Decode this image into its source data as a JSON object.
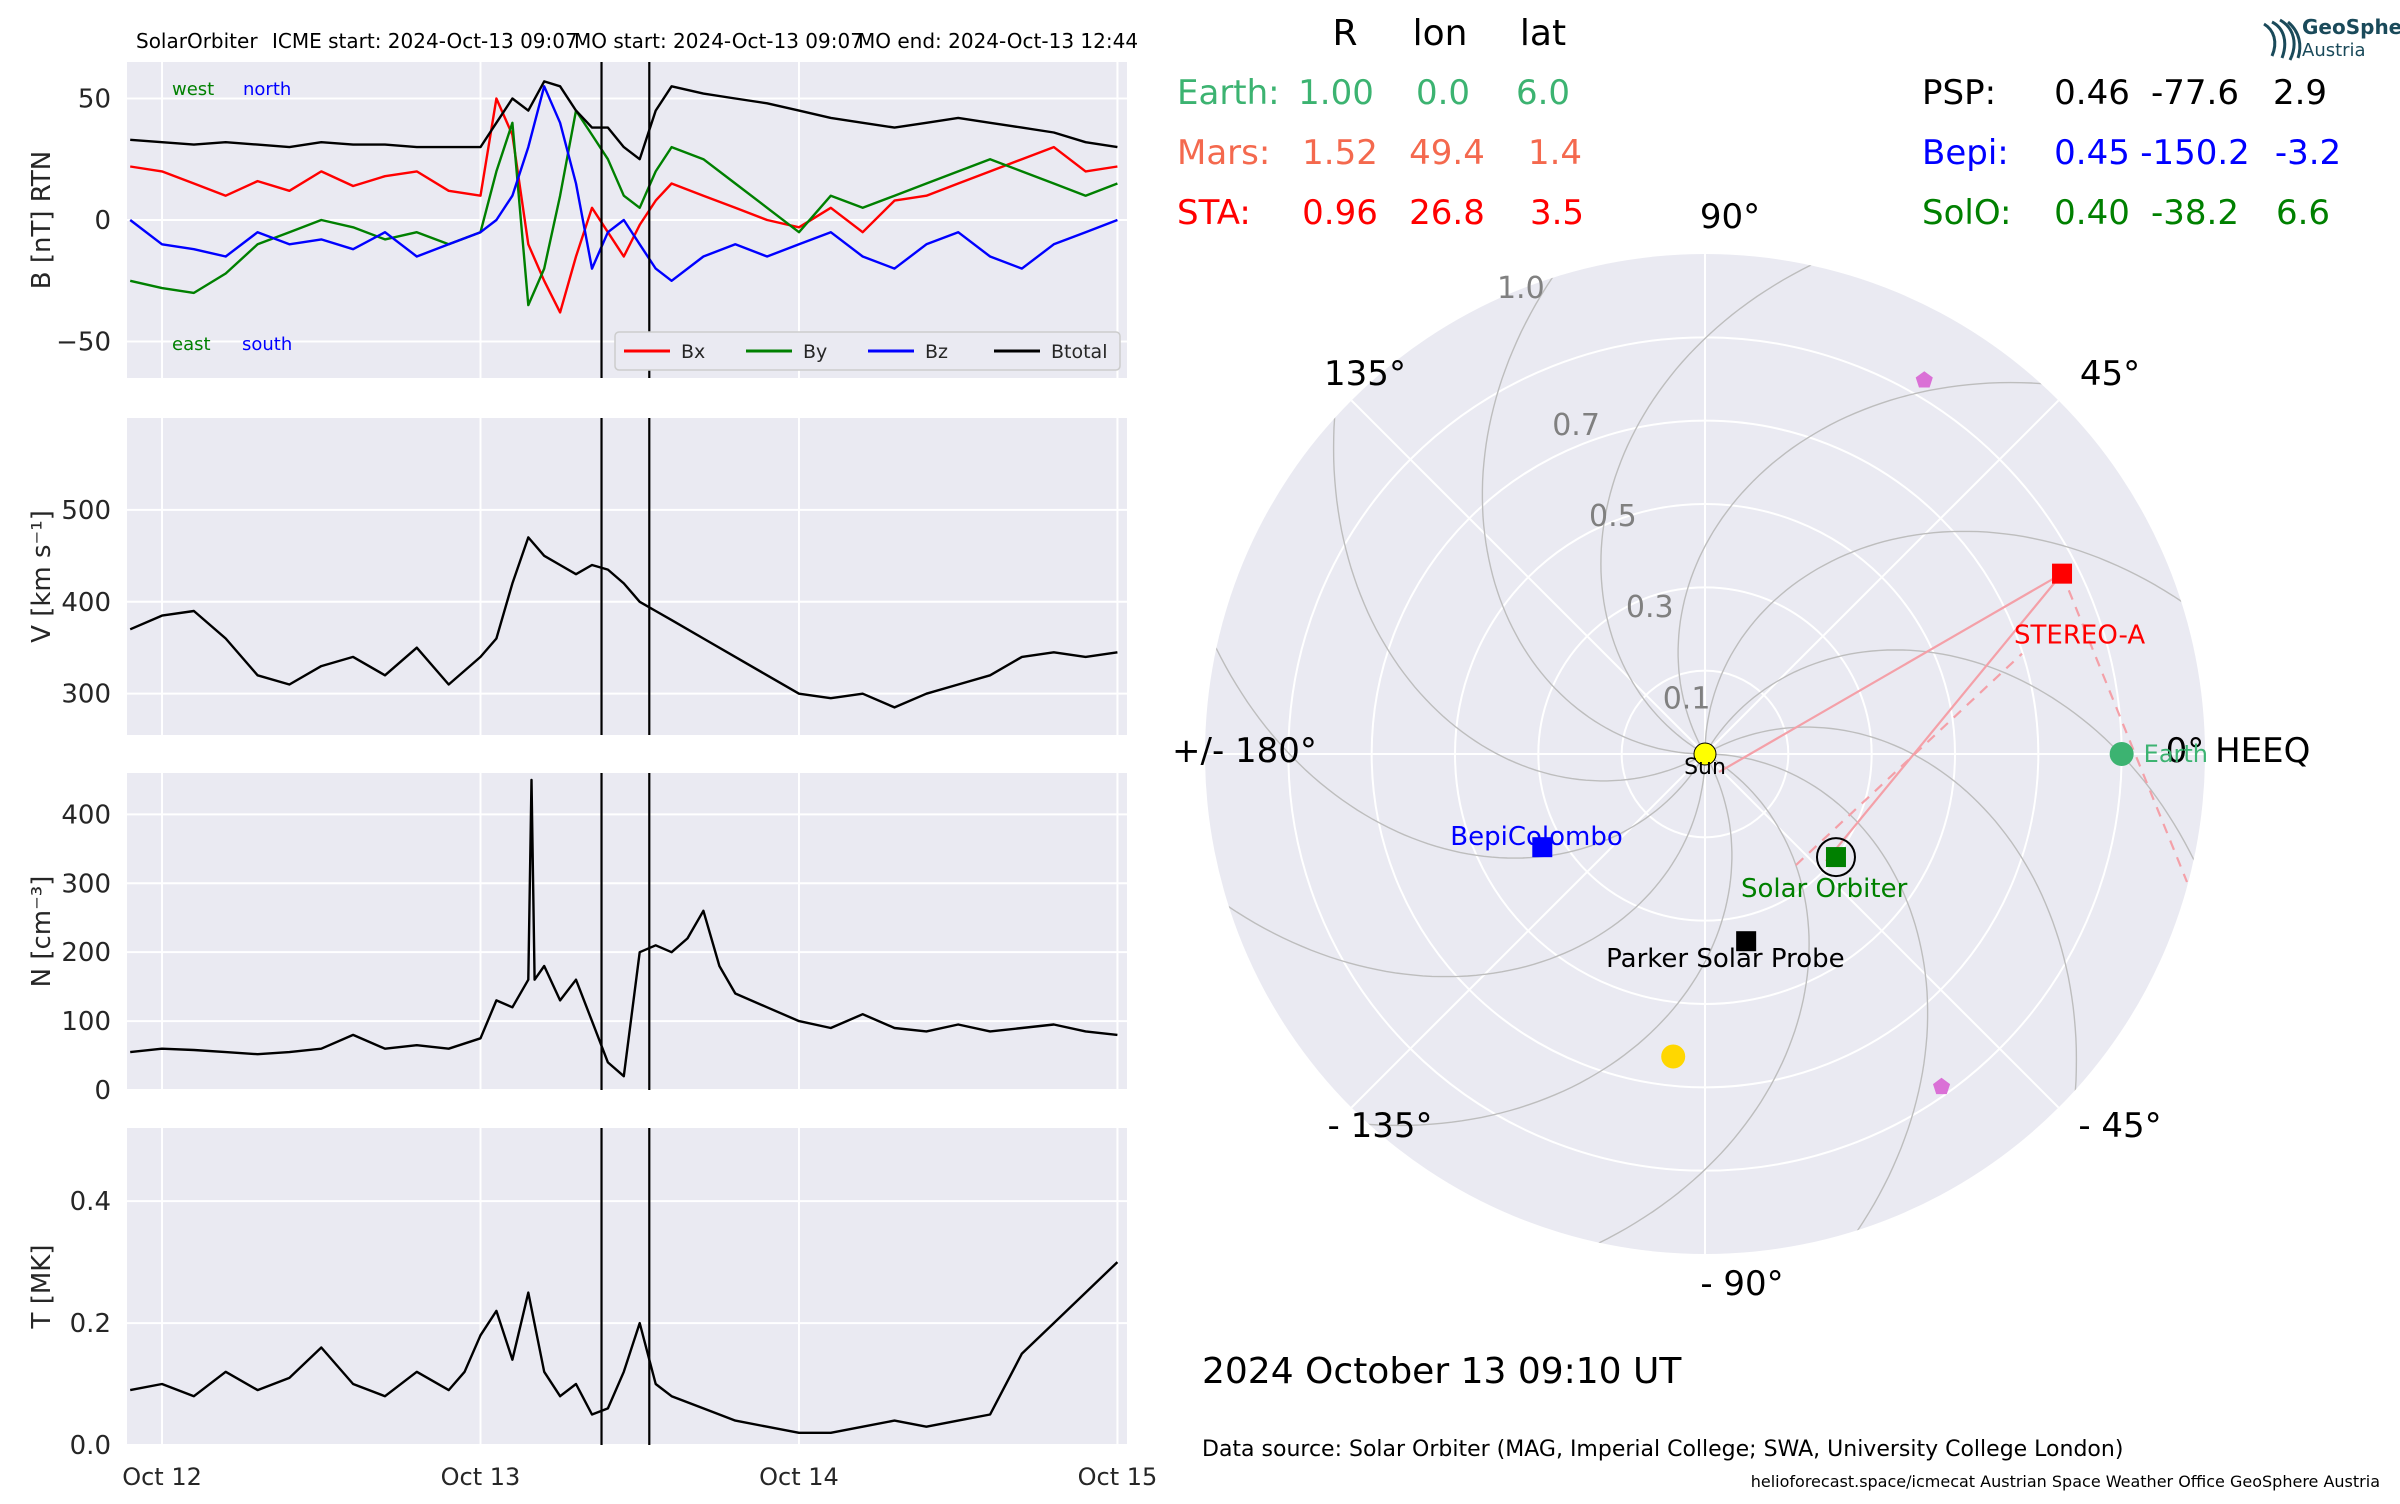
{
  "header": {
    "spacecraft": "SolarOrbiter",
    "icme_start": "ICME start: 2024-Oct-13 09:07",
    "mo_start": "MO start: 2024-Oct-13 09:07",
    "mo_end": "MO end: 2024-Oct-13 12:44"
  },
  "logo": {
    "line1": "GeoSphere",
    "line2": "Austria"
  },
  "positions_table": {
    "headers": [
      "R",
      "lon",
      "lat"
    ],
    "left": [
      {
        "name": "Earth:",
        "r": "1.00",
        "lon": "0.0",
        "lat": "6.0",
        "color": "#3cb371"
      },
      {
        "name": "Mars:",
        "r": "1.52",
        "lon": "49.4",
        "lat": "1.4",
        "color": "#f4694e"
      },
      {
        "name": "STA:",
        "r": "0.96",
        "lon": "26.8",
        "lat": "3.5",
        "color": "#ff0000"
      }
    ],
    "right": [
      {
        "name": "PSP:",
        "r": "0.46",
        "lon": "-77.6",
        "lat": "2.9",
        "color": "#000000"
      },
      {
        "name": "Bepi:",
        "r": "0.45",
        "lon": "-150.2",
        "lat": "-3.2",
        "color": "#0000ff"
      },
      {
        "name": "SolO:",
        "r": "0.40",
        "lon": "-38.2",
        "lat": "6.6",
        "color": "#008000"
      }
    ]
  },
  "date_label": "2024 October 13  09:10 UT",
  "data_source": "Data source: Solar Orbiter (MAG, Imperial College; SWA, University College London)",
  "footer": "helioforecast.space/icmecat   Austrian Space Weather Office   GeoSphere Austria",
  "chart_data": [
    {
      "type": "line",
      "panel": "B",
      "ylabel": "B [nT] RTN",
      "ylim": [
        -65,
        65
      ],
      "yticks": [
        50,
        0,
        -50
      ],
      "ytick_labels": [
        "50",
        "0",
        "−50"
      ],
      "x_unit": "days since 2024-Oct-12 00:00",
      "xlim": [
        -0.11,
        3.03
      ],
      "annotations": {
        "west": "west",
        "north": "north",
        "east": "east",
        "south": "south"
      },
      "annotation_colors": {
        "west": "#008000",
        "north": "#0000ff",
        "east": "#008000",
        "south": "#0000ff"
      },
      "legend": {
        "placement": "lower-right",
        "entries": [
          "Bx",
          "By",
          "Bz",
          "Btotal"
        ]
      },
      "series": [
        {
          "name": "Bx",
          "color": "#ff0000",
          "x": [
            -0.1,
            0.0,
            0.1,
            0.2,
            0.3,
            0.4,
            0.5,
            0.6,
            0.7,
            0.8,
            0.9,
            1.0,
            1.05,
            1.1,
            1.15,
            1.2,
            1.25,
            1.3,
            1.35,
            1.4,
            1.45,
            1.5,
            1.55,
            1.6,
            1.7,
            1.8,
            1.9,
            2.0,
            2.1,
            2.2,
            2.3,
            2.4,
            2.5,
            2.6,
            2.7,
            2.8,
            2.9,
            3.0
          ],
          "y": [
            22,
            20,
            15,
            10,
            16,
            12,
            20,
            14,
            18,
            20,
            12,
            10,
            50,
            35,
            -10,
            -25,
            -38,
            -15,
            5,
            -5,
            -15,
            -2,
            8,
            15,
            10,
            5,
            0,
            -3,
            5,
            -5,
            8,
            10,
            15,
            20,
            25,
            30,
            20,
            22
          ]
        },
        {
          "name": "By",
          "color": "#008000",
          "x": [
            -0.1,
            0.0,
            0.1,
            0.2,
            0.3,
            0.4,
            0.5,
            0.6,
            0.7,
            0.8,
            0.9,
            1.0,
            1.05,
            1.1,
            1.15,
            1.2,
            1.25,
            1.3,
            1.35,
            1.4,
            1.45,
            1.5,
            1.55,
            1.6,
            1.7,
            1.8,
            1.9,
            2.0,
            2.1,
            2.2,
            2.3,
            2.4,
            2.5,
            2.6,
            2.7,
            2.8,
            2.9,
            3.0
          ],
          "y": [
            -25,
            -28,
            -30,
            -22,
            -10,
            -5,
            0,
            -3,
            -8,
            -5,
            -10,
            -5,
            20,
            40,
            -35,
            -20,
            10,
            45,
            35,
            25,
            10,
            5,
            20,
            30,
            25,
            15,
            5,
            -5,
            10,
            5,
            10,
            15,
            20,
            25,
            20,
            15,
            10,
            15
          ]
        },
        {
          "name": "Bz",
          "color": "#0000ff",
          "x": [
            -0.1,
            0.0,
            0.1,
            0.2,
            0.3,
            0.4,
            0.5,
            0.6,
            0.7,
            0.8,
            0.9,
            1.0,
            1.05,
            1.1,
            1.15,
            1.2,
            1.25,
            1.3,
            1.35,
            1.4,
            1.45,
            1.5,
            1.55,
            1.6,
            1.7,
            1.8,
            1.9,
            2.0,
            2.1,
            2.2,
            2.3,
            2.4,
            2.5,
            2.6,
            2.7,
            2.8,
            2.9,
            3.0
          ],
          "y": [
            0,
            -10,
            -12,
            -15,
            -5,
            -10,
            -8,
            -12,
            -5,
            -15,
            -10,
            -5,
            0,
            10,
            30,
            55,
            40,
            15,
            -20,
            -5,
            0,
            -10,
            -20,
            -25,
            -15,
            -10,
            -15,
            -10,
            -5,
            -15,
            -20,
            -10,
            -5,
            -15,
            -20,
            -10,
            -5,
            0
          ]
        },
        {
          "name": "Btotal",
          "color": "#000000",
          "x": [
            -0.1,
            0.0,
            0.1,
            0.2,
            0.3,
            0.4,
            0.5,
            0.6,
            0.7,
            0.8,
            0.9,
            1.0,
            1.05,
            1.1,
            1.15,
            1.2,
            1.25,
            1.3,
            1.35,
            1.4,
            1.45,
            1.5,
            1.55,
            1.6,
            1.7,
            1.8,
            1.9,
            2.0,
            2.1,
            2.2,
            2.3,
            2.4,
            2.5,
            2.6,
            2.7,
            2.8,
            2.9,
            3.0
          ],
          "y": [
            33,
            32,
            31,
            32,
            31,
            30,
            32,
            31,
            31,
            30,
            30,
            30,
            40,
            50,
            45,
            57,
            55,
            45,
            38,
            38,
            30,
            25,
            45,
            55,
            52,
            50,
            48,
            45,
            42,
            40,
            38,
            40,
            42,
            40,
            38,
            36,
            32,
            30
          ]
        }
      ],
      "vlines": [
        1.38,
        1.53
      ]
    },
    {
      "type": "line",
      "panel": "V",
      "ylabel": "V [km s⁻¹]",
      "ylim": [
        255,
        600
      ],
      "yticks": [
        500,
        400,
        300
      ],
      "ytick_labels": [
        "500",
        "400",
        "300"
      ],
      "xlim": [
        -0.11,
        3.03
      ],
      "series": [
        {
          "name": "",
          "color": "#000000",
          "x": [
            -0.1,
            0.0,
            0.1,
            0.2,
            0.3,
            0.4,
            0.5,
            0.6,
            0.7,
            0.8,
            0.9,
            1.0,
            1.05,
            1.1,
            1.15,
            1.2,
            1.25,
            1.3,
            1.35,
            1.4,
            1.45,
            1.5,
            1.55,
            1.6,
            1.7,
            1.8,
            1.9,
            2.0,
            2.1,
            2.2,
            2.3,
            2.4,
            2.5,
            2.6,
            2.7,
            2.8,
            2.9,
            3.0
          ],
          "y": [
            370,
            385,
            390,
            360,
            320,
            310,
            330,
            340,
            320,
            350,
            310,
            340,
            360,
            420,
            470,
            450,
            440,
            430,
            440,
            435,
            420,
            400,
            390,
            380,
            360,
            340,
            320,
            300,
            295,
            300,
            285,
            300,
            310,
            320,
            340,
            345,
            340,
            345
          ]
        }
      ],
      "vlines": [
        1.38,
        1.53
      ]
    },
    {
      "type": "line",
      "panel": "N",
      "ylabel": "N [cm⁻³]",
      "ylim": [
        0,
        460
      ],
      "yticks": [
        400,
        300,
        200,
        100,
        0
      ],
      "ytick_labels": [
        "400",
        "300",
        "200",
        "100",
        "0"
      ],
      "xlim": [
        -0.11,
        3.03
      ],
      "series": [
        {
          "name": "",
          "color": "#000000",
          "x": [
            -0.1,
            0.0,
            0.1,
            0.2,
            0.3,
            0.4,
            0.5,
            0.6,
            0.7,
            0.8,
            0.9,
            1.0,
            1.05,
            1.1,
            1.15,
            1.16,
            1.17,
            1.2,
            1.25,
            1.3,
            1.35,
            1.4,
            1.45,
            1.5,
            1.55,
            1.6,
            1.65,
            1.7,
            1.75,
            1.8,
            1.9,
            2.0,
            2.1,
            2.2,
            2.3,
            2.4,
            2.5,
            2.6,
            2.7,
            2.8,
            2.9,
            3.0
          ],
          "y": [
            55,
            60,
            58,
            55,
            52,
            55,
            60,
            80,
            60,
            65,
            60,
            75,
            130,
            120,
            160,
            450,
            160,
            180,
            130,
            160,
            100,
            40,
            20,
            200,
            210,
            200,
            220,
            260,
            180,
            140,
            120,
            100,
            90,
            110,
            90,
            85,
            95,
            85,
            90,
            95,
            85,
            80
          ]
        }
      ],
      "vlines": [
        1.38,
        1.53
      ]
    },
    {
      "type": "line",
      "panel": "T",
      "ylabel": "T [MK]",
      "ylim": [
        0,
        0.52
      ],
      "yticks": [
        0.4,
        0.2,
        0.0
      ],
      "ytick_labels": [
        "0.4",
        "0.2",
        "0.0"
      ],
      "xlim": [
        -0.11,
        3.03
      ],
      "xticks": [
        0,
        1,
        2,
        3
      ],
      "xtick_labels": [
        "Oct 12",
        "Oct 13",
        "Oct 14",
        "Oct 15"
      ],
      "series": [
        {
          "name": "",
          "color": "#000000",
          "x": [
            -0.1,
            0.0,
            0.1,
            0.2,
            0.3,
            0.4,
            0.5,
            0.6,
            0.7,
            0.8,
            0.9,
            0.95,
            1.0,
            1.05,
            1.1,
            1.15,
            1.2,
            1.25,
            1.3,
            1.35,
            1.4,
            1.45,
            1.5,
            1.55,
            1.6,
            1.7,
            1.8,
            1.9,
            2.0,
            2.1,
            2.2,
            2.3,
            2.4,
            2.5,
            2.6,
            2.7,
            2.8,
            2.9,
            3.0
          ],
          "y": [
            0.09,
            0.1,
            0.08,
            0.12,
            0.09,
            0.11,
            0.16,
            0.1,
            0.08,
            0.12,
            0.09,
            0.12,
            0.18,
            0.22,
            0.14,
            0.25,
            0.12,
            0.08,
            0.1,
            0.05,
            0.06,
            0.12,
            0.2,
            0.1,
            0.08,
            0.06,
            0.04,
            0.03,
            0.02,
            0.02,
            0.03,
            0.04,
            0.03,
            0.04,
            0.05,
            0.15,
            0.2,
            0.25,
            0.3
          ]
        }
      ],
      "vlines": [
        1.38,
        1.53
      ]
    },
    {
      "type": "scatter",
      "panel": "polar",
      "projection": "polar",
      "r_max": 1.2,
      "r_ticks": [
        0.1,
        0.3,
        0.5,
        0.7,
        1.0
      ],
      "r_tick_labels": [
        "0.1",
        "0.3",
        "0.5",
        "0.7",
        "1.0"
      ],
      "theta_labels": [
        {
          "angle": 0,
          "label": "0° HEEQ"
        },
        {
          "angle": 45,
          "label": "45°"
        },
        {
          "angle": 90,
          "label": "90°"
        },
        {
          "angle": 135,
          "label": "135°"
        },
        {
          "angle": 180,
          "label": "+/- 180°"
        },
        {
          "angle": -135,
          "label": "- 135°"
        },
        {
          "angle": -90,
          "label": "- 90°"
        },
        {
          "angle": -45,
          "label": "- 45°"
        }
      ],
      "bodies": [
        {
          "name": "Sun",
          "label": "Sun",
          "r": 0,
          "lon": 0,
          "marker": "circle",
          "color": "#ffff00",
          "label_color": "#000000"
        },
        {
          "name": "Earth",
          "label": "Earth",
          "r": 1.0,
          "lon": 0.0,
          "marker": "circle",
          "color": "#3cb371",
          "label_color": "#3cb371"
        },
        {
          "name": "STEREO-A",
          "label": "STEREO-A",
          "r": 0.96,
          "lon": 26.8,
          "marker": "square",
          "color": "#ff0000",
          "label_color": "#ff0000"
        },
        {
          "name": "BepiColombo",
          "label": "BepiColombo",
          "r": 0.45,
          "lon": -150.2,
          "marker": "square",
          "color": "#0000ff",
          "label_color": "#0000ff"
        },
        {
          "name": "Solar Orbiter",
          "label": "Solar Orbiter",
          "r": 0.4,
          "lon": -38.2,
          "marker": "square-ring",
          "color": "#008000",
          "label_color": "#008000"
        },
        {
          "name": "Parker Solar Probe",
          "label": "Parker Solar Probe",
          "r": 0.46,
          "lon": -77.6,
          "marker": "square",
          "color": "#000000",
          "label_color": "#000000"
        },
        {
          "name": "Mars",
          "label": "",
          "r": 1.52,
          "lon": 49.4,
          "marker": "none",
          "color": "#f4694e",
          "label_color": "#f4694e"
        },
        {
          "name": "planet-yellow",
          "label": "",
          "r": 0.73,
          "lon": -96.0,
          "marker": "circle",
          "color": "#ffd700",
          "label_color": "#000000"
        },
        {
          "name": "pentagon-north",
          "label": "",
          "r": 1.04,
          "lon": 59.6,
          "marker": "pentagon",
          "color": "#da70d6",
          "label_color": "#000000"
        },
        {
          "name": "pentagon-south",
          "label": "",
          "r": 0.98,
          "lon": -54.6,
          "marker": "pentagon",
          "color": "#da70d6",
          "label_color": "#000000"
        }
      ]
    }
  ]
}
